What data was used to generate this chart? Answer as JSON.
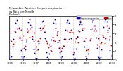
{
  "title": "Milwaukee Weather Evapotranspiration\nvs Rain per Month\n(Inches)",
  "legend_labels": [
    "Evapotranspiration",
    "Rain"
  ],
  "legend_colors": [
    "#0000dd",
    "#dd0000"
  ],
  "background_color": "#ffffff",
  "plot_bg": "#ffffff",
  "ylim": [
    0.0,
    5.0
  ],
  "num_years": 8,
  "grid_color": "#aaaaaa",
  "et_color": "#0000cc",
  "rain_color": "#cc0000",
  "dot_size": 1.8,
  "start_year": 1995
}
